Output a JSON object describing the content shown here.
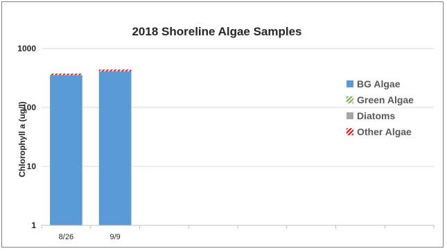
{
  "chart_data": {
    "type": "bar",
    "stacked": true,
    "title": "2018 Shoreline Algae Samples",
    "xlabel": "",
    "ylabel": "Chlorophyll a (ug/l)",
    "yscale": "log",
    "ylim": [
      1,
      1000
    ],
    "y_ticks": [
      "1",
      "10",
      "100",
      "1000"
    ],
    "categories": [
      "8/26",
      "9/9",
      "",
      "",
      "",
      "",
      "",
      ""
    ],
    "grid": true,
    "legend_position": "right",
    "series": [
      {
        "name": "BG Algae",
        "values": [
          355,
          410,
          null,
          null,
          null,
          null,
          null,
          null
        ],
        "color": "#5b9bd5",
        "pattern": "solid"
      },
      {
        "name": "Green Algae",
        "values": [
          0,
          0,
          null,
          null,
          null,
          null,
          null,
          null
        ],
        "color": "#70ad47",
        "pattern": "diagonal-stripe"
      },
      {
        "name": "Diatoms",
        "values": [
          0,
          0,
          null,
          null,
          null,
          null,
          null,
          null
        ],
        "color": "#a5a5a5",
        "pattern": "solid"
      },
      {
        "name": "Other Algae",
        "values": [
          20,
          30,
          null,
          null,
          null,
          null,
          null,
          null
        ],
        "color": "#ff0000",
        "pattern": "diagonal-stripe"
      }
    ]
  }
}
